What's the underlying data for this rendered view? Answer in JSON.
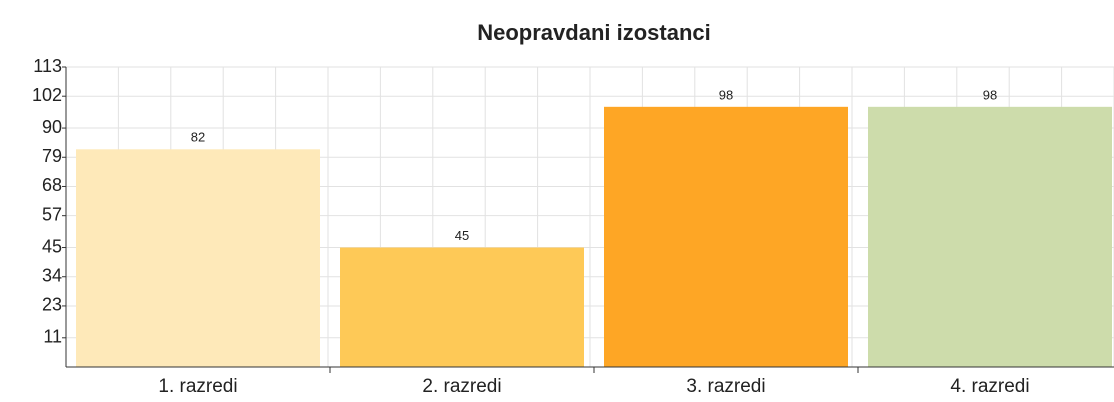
{
  "chart_data": {
    "type": "bar",
    "title": "Neopravdani izostanci",
    "categories": [
      "1. razredi",
      "2. razredi",
      "3. razredi",
      "4. razredi"
    ],
    "values": [
      82,
      45,
      98,
      98
    ],
    "colors": [
      "#fee9b9",
      "#fec957",
      "#fea625",
      "#cddcab"
    ],
    "ylim": [
      0,
      113
    ],
    "yticks": [
      11,
      23,
      34,
      45,
      57,
      68,
      79,
      90,
      102,
      113
    ],
    "grid": true
  }
}
